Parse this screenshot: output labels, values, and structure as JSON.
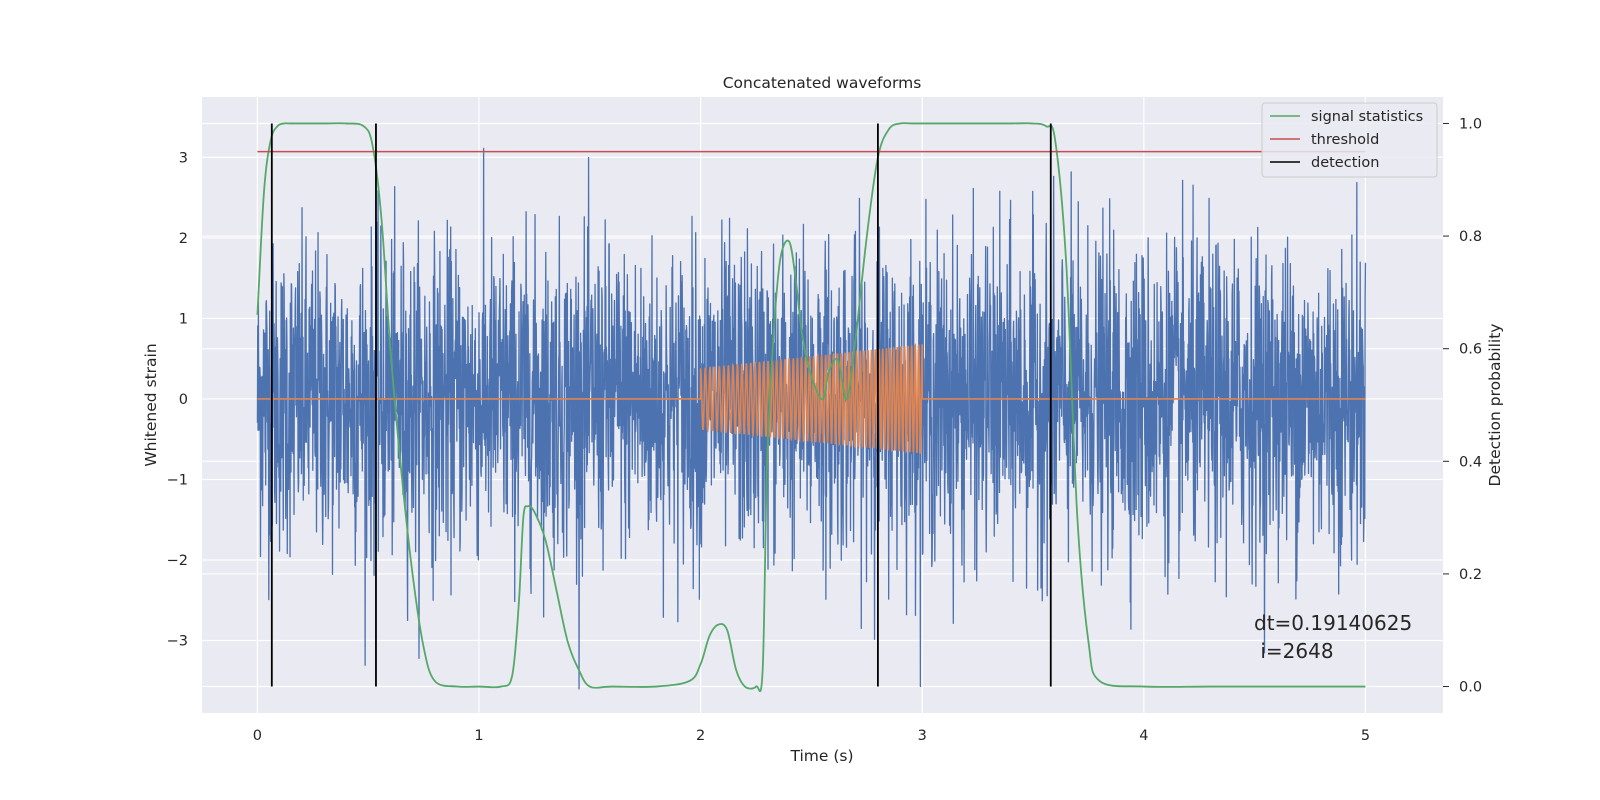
{
  "chart_data": {
    "type": "line",
    "title": "Concatenated waveforms",
    "xlabel": "Time (s)",
    "ylabel": "Whitened strain",
    "ylabel_right": "Detection probability",
    "xlim": [
      -0.25,
      5.35
    ],
    "ylim": [
      -3.9,
      3.75
    ],
    "ylim_right": [
      -0.047,
      1.047
    ],
    "x_ticks": [
      0,
      1,
      2,
      3,
      4,
      5
    ],
    "y_ticks": [
      -3,
      -2,
      -1,
      0,
      1,
      2,
      3
    ],
    "y_ticks_right": [
      0.0,
      0.2,
      0.4,
      0.6,
      0.8,
      1.0
    ],
    "x_tick_labels": [
      "0",
      "1",
      "2",
      "3",
      "4",
      "5"
    ],
    "y_tick_labels": [
      "−3",
      "−2",
      "−1",
      "0",
      "1",
      "2",
      "3"
    ],
    "y_tick_labels_right": [
      "0.0",
      "0.2",
      "0.4",
      "0.6",
      "0.8",
      "1.0"
    ],
    "grid": true,
    "legend_position": "top-right",
    "series": [
      {
        "name": "whitened strain",
        "color": "#4c72b0",
        "axis": "left",
        "description_kind": "noise",
        "x_range": [
          0,
          5
        ],
        "std": 0.95,
        "clip": [
          -3.6,
          3.6
        ]
      },
      {
        "name": "injected chirp",
        "color": "#dd8452",
        "axis": "left",
        "x_range": [
          0,
          5
        ],
        "chirp_start": 2.0,
        "chirp_end": 3.0,
        "amplitude_start": 0.38,
        "amplitude_end": 0.68,
        "cycles": 55
      },
      {
        "name": "signal statistics",
        "color": "#55a868",
        "axis": "right",
        "x": [
          0.0,
          0.03,
          0.06,
          0.09,
          0.12,
          0.15,
          0.2,
          0.3,
          0.4,
          0.48,
          0.52,
          0.56,
          0.6,
          0.65,
          0.7,
          0.75,
          0.8,
          0.9,
          1.0,
          1.1,
          1.15,
          1.18,
          1.2,
          1.22,
          1.25,
          1.3,
          1.35,
          1.4,
          1.45,
          1.5,
          1.6,
          1.8,
          1.95,
          2.0,
          2.04,
          2.08,
          2.12,
          2.16,
          2.2,
          2.25,
          2.28,
          2.3,
          2.33,
          2.36,
          2.4,
          2.43,
          2.46,
          2.5,
          2.55,
          2.58,
          2.62,
          2.66,
          2.7,
          2.75,
          2.8,
          2.85,
          2.9,
          2.95,
          3.0,
          3.2,
          3.4,
          3.5,
          3.56,
          3.6,
          3.65,
          3.7,
          3.75,
          3.8,
          4.0,
          4.3,
          4.6,
          5.0
        ],
        "values": [
          0.66,
          0.88,
          0.97,
          0.995,
          1.0,
          1.0,
          1.0,
          1.0,
          1.0,
          0.995,
          0.96,
          0.83,
          0.6,
          0.38,
          0.2,
          0.07,
          0.01,
          0.0,
          0.0,
          0.0,
          0.02,
          0.15,
          0.3,
          0.32,
          0.31,
          0.26,
          0.17,
          0.08,
          0.03,
          0.0,
          0.0,
          0.0,
          0.01,
          0.04,
          0.09,
          0.11,
          0.1,
          0.03,
          0.0,
          0.0,
          0.03,
          0.4,
          0.63,
          0.76,
          0.79,
          0.72,
          0.62,
          0.55,
          0.51,
          0.56,
          0.58,
          0.51,
          0.62,
          0.8,
          0.94,
          0.99,
          1.0,
          1.0,
          1.0,
          1.0,
          1.0,
          1.0,
          0.995,
          0.97,
          0.75,
          0.3,
          0.08,
          0.01,
          0.0,
          0.0,
          0.0,
          0.0
        ]
      },
      {
        "name": "threshold",
        "color": "#c44e52",
        "axis": "right",
        "x": [
          0,
          5
        ],
        "values": [
          0.95,
          0.95
        ]
      },
      {
        "name": "detection",
        "color": "#000000",
        "axis": "right",
        "type": "vlines",
        "x": [
          0.065,
          0.535,
          2.8,
          3.58
        ],
        "y_range": [
          0.0,
          1.0
        ]
      }
    ],
    "legend": [
      "signal statistics",
      "threshold",
      "detection"
    ],
    "annotation": {
      "line1": "dt=0.19140625",
      "line2": " i=2648"
    }
  }
}
